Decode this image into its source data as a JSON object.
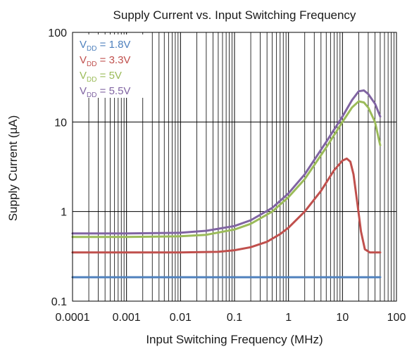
{
  "chart_data": {
    "type": "line",
    "title": "Supply Current vs. Input Switching Frequency",
    "xlabel": "Input Switching Frequency (MHz)",
    "ylabel": "Supply Current (µA)",
    "x_scale": "log",
    "y_scale": "log",
    "xlim": [
      0.0001,
      100
    ],
    "ylim": [
      0.1,
      100
    ],
    "x_ticks": [
      {
        "value": 0.0001,
        "label": "0.0001"
      },
      {
        "value": 0.001,
        "label": "0.001"
      },
      {
        "value": 0.01,
        "label": "0.01"
      },
      {
        "value": 0.1,
        "label": "0.1"
      },
      {
        "value": 1,
        "label": "1"
      },
      {
        "value": 10,
        "label": "10"
      },
      {
        "value": 100,
        "label": "100"
      }
    ],
    "y_ticks": [
      {
        "value": 0.1,
        "label": "0.1"
      },
      {
        "value": 1,
        "label": "1"
      },
      {
        "value": 10,
        "label": "10"
      },
      {
        "value": 100,
        "label": "100"
      }
    ],
    "grid": true,
    "legend": "top-left",
    "series": [
      {
        "legend_main": "V",
        "legend_sub": "DD",
        "legend_value": " = 1.8V",
        "color": "#4f81bd",
        "points": [
          [
            0.0001,
            0.185
          ],
          [
            0.001,
            0.185
          ],
          [
            0.01,
            0.185
          ],
          [
            0.1,
            0.185
          ],
          [
            1,
            0.185
          ],
          [
            10,
            0.185
          ],
          [
            50,
            0.185
          ]
        ]
      },
      {
        "legend_main": "V",
        "legend_sub": "DD",
        "legend_value": " = 3.3V",
        "color": "#c0504d",
        "points": [
          [
            0.0001,
            0.35
          ],
          [
            0.001,
            0.35
          ],
          [
            0.01,
            0.35
          ],
          [
            0.05,
            0.355
          ],
          [
            0.1,
            0.37
          ],
          [
            0.2,
            0.4
          ],
          [
            0.4,
            0.46
          ],
          [
            0.7,
            0.56
          ],
          [
            1,
            0.66
          ],
          [
            2,
            1.0
          ],
          [
            4,
            1.7
          ],
          [
            7,
            2.9
          ],
          [
            10,
            3.7
          ],
          [
            12,
            3.9
          ],
          [
            14,
            3.6
          ],
          [
            16,
            2.6
          ],
          [
            19,
            1.2
          ],
          [
            22,
            0.6
          ],
          [
            26,
            0.38
          ],
          [
            32,
            0.35
          ],
          [
            50,
            0.35
          ]
        ]
      },
      {
        "legend_main": "V",
        "legend_sub": "DD",
        "legend_value": " = 5V",
        "color": "#9bbb59",
        "points": [
          [
            0.0001,
            0.52
          ],
          [
            0.001,
            0.52
          ],
          [
            0.01,
            0.53
          ],
          [
            0.03,
            0.55
          ],
          [
            0.1,
            0.63
          ],
          [
            0.2,
            0.73
          ],
          [
            0.5,
            1.0
          ],
          [
            1,
            1.45
          ],
          [
            2,
            2.3
          ],
          [
            5,
            5.2
          ],
          [
            10,
            10
          ],
          [
            15,
            14.5
          ],
          [
            20,
            17
          ],
          [
            25,
            16.5
          ],
          [
            30,
            14.5
          ],
          [
            40,
            10
          ],
          [
            50,
            5.5
          ]
        ]
      },
      {
        "legend_main": "V",
        "legend_sub": "DD",
        "legend_value": " = 5.5V",
        "color": "#8064a2",
        "points": [
          [
            0.0001,
            0.57
          ],
          [
            0.001,
            0.57
          ],
          [
            0.01,
            0.58
          ],
          [
            0.03,
            0.61
          ],
          [
            0.1,
            0.69
          ],
          [
            0.2,
            0.8
          ],
          [
            0.5,
            1.1
          ],
          [
            1,
            1.6
          ],
          [
            2,
            2.6
          ],
          [
            5,
            6
          ],
          [
            10,
            11.5
          ],
          [
            15,
            17.5
          ],
          [
            20,
            22
          ],
          [
            25,
            22.5
          ],
          [
            30,
            20.5
          ],
          [
            40,
            16
          ],
          [
            50,
            11.5
          ]
        ]
      }
    ]
  }
}
